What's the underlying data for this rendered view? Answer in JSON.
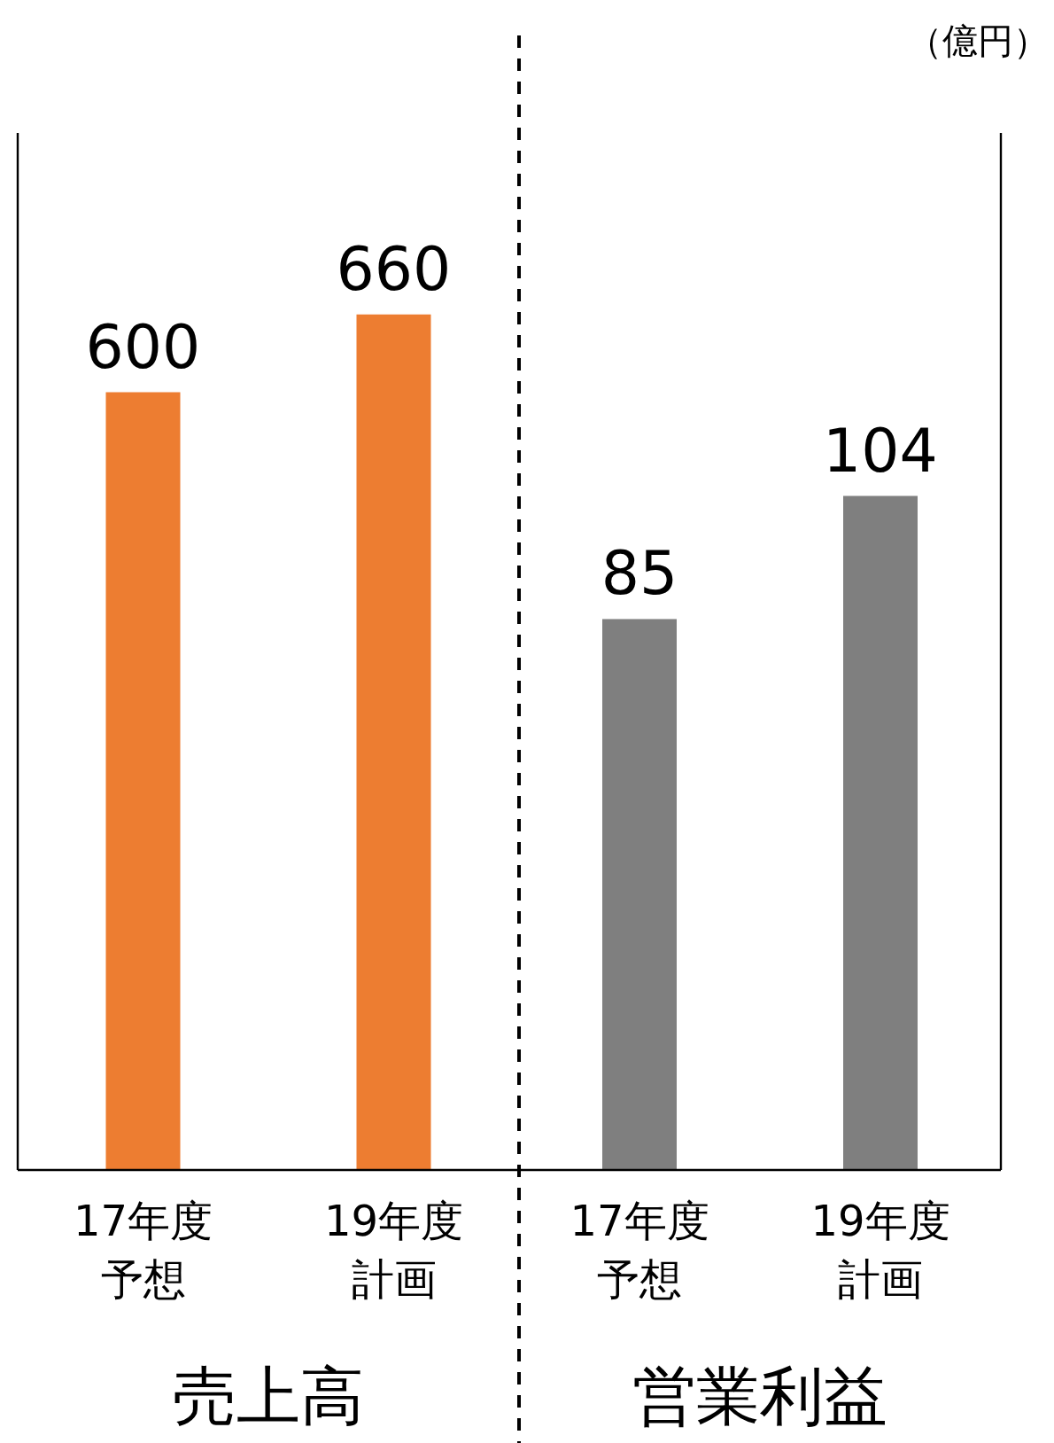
{
  "chart_data": [
    {
      "type": "bar",
      "categories": [
        "17年度予想",
        "19年度計画"
      ],
      "values": [
        600,
        660
      ],
      "color": "#ed7d31",
      "ylim": [
        0,
        800
      ],
      "data_labels": true,
      "xlabel": "売上高",
      "tick_labels": "x"
    },
    {
      "type": "bar",
      "categories": [
        "17年度予想",
        "19年度計画"
      ],
      "values": [
        85,
        104
      ],
      "color": "#7f7f7f",
      "ylim": [
        0,
        160
      ],
      "data_labels": true,
      "xlabel": "営業利益",
      "tick_labels": "x",
      "annotations": [
        "（億円）"
      ]
    }
  ]
}
